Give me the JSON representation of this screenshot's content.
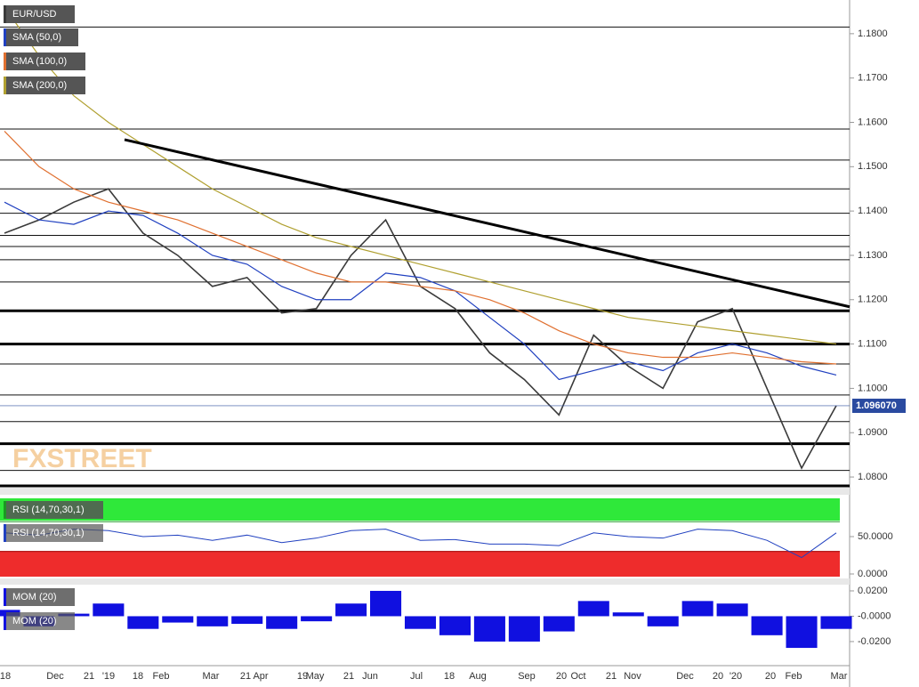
{
  "chart_data": {
    "type": "line",
    "title": "EUR/USD",
    "categories": [
      null,
      null,
      null,
      null,
      null,
      null,
      null,
      null,
      null,
      null,
      null,
      null,
      null,
      null,
      null,
      null,
      null,
      null,
      null,
      null,
      null,
      null,
      null,
      null,
      null
    ],
    "x_labels": [
      "'18",
      "Dec",
      "21",
      "'19",
      "18",
      "Feb",
      "Mar",
      "21",
      "Apr",
      "19",
      "May",
      "21",
      "Jun",
      "Jul",
      "18",
      "Aug",
      "Sep",
      "20",
      "Oct",
      "21",
      "Nov",
      "Dec",
      "20",
      "'20",
      "20",
      "Feb",
      "Mar"
    ],
    "series": [
      {
        "name": "EUR/USD",
        "color": "#3a3a3a",
        "values": [
          1.135,
          1.138,
          1.142,
          1.145,
          1.135,
          1.13,
          1.123,
          1.125,
          1.117,
          1.118,
          1.13,
          1.138,
          1.123,
          1.118,
          1.108,
          1.102,
          1.094,
          1.112,
          1.105,
          1.1,
          1.115,
          1.118,
          1.1,
          1.082,
          1.0961
        ]
      },
      {
        "name": "SMA (50,0)",
        "color": "#2040c0",
        "values": [
          1.142,
          1.138,
          1.137,
          1.14,
          1.139,
          1.135,
          1.13,
          1.128,
          1.123,
          1.12,
          1.12,
          1.126,
          1.125,
          1.122,
          1.116,
          1.11,
          1.102,
          1.104,
          1.106,
          1.104,
          1.108,
          1.11,
          1.108,
          1.105,
          1.103
        ]
      },
      {
        "name": "SMA (100,0)",
        "color": "#e07030",
        "values": [
          1.158,
          1.15,
          1.145,
          1.142,
          1.14,
          1.138,
          1.135,
          1.132,
          1.129,
          1.126,
          1.124,
          1.124,
          1.123,
          1.122,
          1.12,
          1.117,
          1.113,
          1.11,
          1.108,
          1.107,
          1.107,
          1.108,
          1.107,
          1.106,
          1.1055
        ]
      },
      {
        "name": "SMA (200,0)",
        "color": "#b0a030",
        "values": [
          1.186,
          1.175,
          1.166,
          1.16,
          1.155,
          1.15,
          1.145,
          1.141,
          1.137,
          1.134,
          1.132,
          1.13,
          1.128,
          1.126,
          1.124,
          1.122,
          1.12,
          1.118,
          1.116,
          1.115,
          1.114,
          1.113,
          1.112,
          1.111,
          1.11
        ]
      }
    ],
    "ylim": [
      1.0776,
      1.1876
    ],
    "yticks": [
      {
        "value": 1.08,
        "label": "1.0800"
      },
      {
        "value": 1.09,
        "label": "1.0900"
      },
      {
        "value": 1.1,
        "label": "1.1000"
      },
      {
        "value": 1.11,
        "label": "1.1100"
      },
      {
        "value": 1.12,
        "label": "1.1200"
      },
      {
        "value": 1.13,
        "label": "1.1300"
      },
      {
        "value": 1.14,
        "label": "1.1400"
      },
      {
        "value": 1.15,
        "label": "1.1500"
      },
      {
        "value": 1.16,
        "label": "1.1600"
      },
      {
        "value": 1.17,
        "label": "1.1700"
      },
      {
        "value": 1.18,
        "label": "1.1800"
      }
    ],
    "levels": [
      1.1815,
      1.1585,
      1.1515,
      1.145,
      1.1395,
      1.1345,
      1.132,
      1.129,
      1.124,
      1.1055,
      1.0985,
      1.0925,
      1.0815
    ],
    "thick_levels": [
      1.1175,
      1.11,
      1.0875,
      1.078
    ],
    "trendline": [
      1.1561,
      1.1184
    ],
    "last_price": {
      "value": 1.09607,
      "label": "1.096070"
    },
    "watermark": "FXSTREET",
    "rsi": {
      "name": "RSI (14,70,30,1)",
      "color": "#2040c0",
      "values": [
        55,
        52,
        60,
        58,
        50,
        52,
        45,
        52,
        42,
        48,
        58,
        60,
        45,
        46,
        40,
        40,
        38,
        55,
        50,
        48,
        60,
        58,
        45,
        22,
        55
      ],
      "ylim": [
        0,
        100
      ],
      "yticks": [
        {
          "value": 50,
          "label": "50.0000"
        },
        {
          "value": 0,
          "label": "0.0000"
        }
      ],
      "upper": 70,
      "lower": 30
    },
    "mom": {
      "name": "MOM (20)",
      "color": "#1010e0",
      "values": [
        0.005,
        -0.008,
        0.002,
        0.01,
        -0.01,
        -0.005,
        -0.008,
        -0.006,
        -0.01,
        -0.004,
        0.01,
        0.02,
        -0.01,
        -0.015,
        -0.02,
        -0.02,
        -0.012,
        0.012,
        0.003,
        -0.008,
        0.012,
        0.01,
        -0.015,
        -0.025,
        -0.01
      ],
      "ylim": [
        -0.039,
        0.0256
      ],
      "yticks": [
        {
          "value": 0.02,
          "label": "0.0200"
        },
        {
          "value": 0,
          "label": "-0.0000"
        },
        {
          "value": -0.02,
          "label": "-0.0200"
        }
      ]
    }
  }
}
